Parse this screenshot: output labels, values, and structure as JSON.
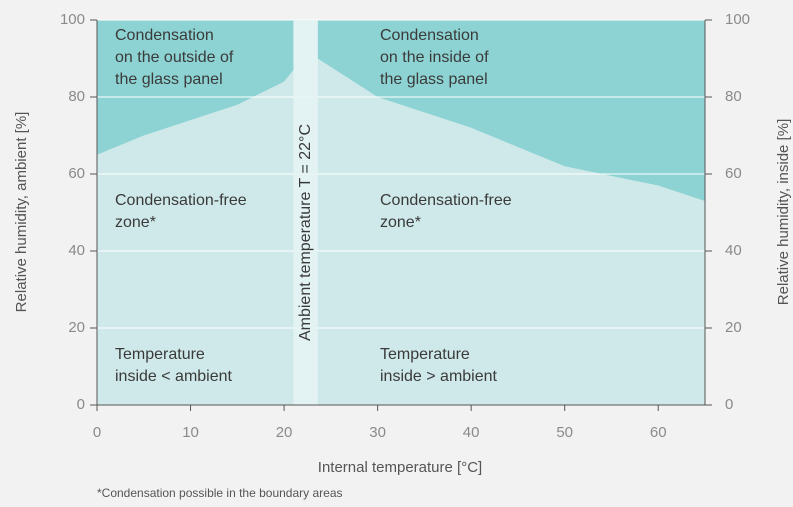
{
  "chart_data": {
    "type": "area",
    "xlabel": "Internal temperature [°C]",
    "ylabel": "Relative humidity, ambient [%]",
    "y2label": "Relative humidity, inside [%]",
    "footnote": "*Condensation possible in the boundary areas",
    "xlim": [
      0,
      65
    ],
    "xticks": [
      0,
      10,
      20,
      30,
      40,
      50,
      60
    ],
    "ylim": [
      0,
      100
    ],
    "yticks": [
      0,
      20,
      40,
      60,
      80,
      100
    ],
    "y2lim": [
      0,
      100
    ],
    "y2ticks": [
      0,
      20,
      40,
      60,
      80,
      100
    ],
    "grid": true,
    "series": [
      {
        "color": "#8ed3d3",
        "x": [
          0,
          5,
          10,
          15,
          20,
          21
        ],
        "values": [
          65,
          70,
          74,
          78,
          84,
          87
        ]
      },
      {
        "color": "#8ed3d3",
        "x": [
          23.6,
          30,
          40,
          50,
          60,
          65
        ],
        "values": [
          90,
          80,
          72,
          62,
          57,
          53
        ]
      }
    ],
    "ambient_band": {
      "label": "Ambient temperature T = 22°C",
      "x": [
        21,
        23.6
      ]
    },
    "annotations": [
      {
        "lines": [
          "Condensation",
          "on the outside of",
          "the glass panel"
        ]
      },
      {
        "lines": [
          "Condensation",
          "on the inside of",
          "the glass panel"
        ]
      },
      {
        "lines": [
          "Condensation-free",
          "zone*"
        ]
      },
      {
        "lines": [
          "Condensation-free",
          "zone*"
        ]
      },
      {
        "lines": [
          "Temperature",
          "inside < ambient"
        ]
      },
      {
        "lines": [
          "Temperature",
          "inside > ambient"
        ]
      }
    ]
  }
}
